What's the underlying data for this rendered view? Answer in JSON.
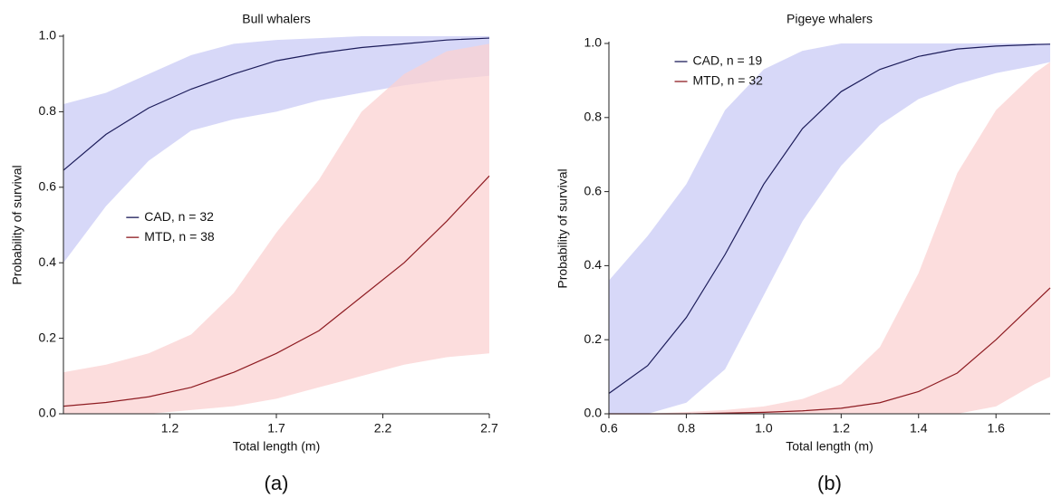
{
  "chart_data": [
    {
      "type": "line",
      "title": "Bull whalers",
      "xlabel": "Total length (m)",
      "ylabel": "Probability of survival",
      "label": "(a)",
      "x": [
        0.7,
        0.9,
        1.1,
        1.3,
        1.5,
        1.7,
        1.9,
        2.1,
        2.3,
        2.5,
        2.7
      ],
      "xlim": [
        0.7,
        2.7
      ],
      "xticks": [
        1.2,
        1.7,
        2.2,
        2.7
      ],
      "ylim": [
        0,
        1
      ],
      "yticks": [
        {
          "value": 0,
          "label": "0.0"
        },
        0.2,
        0.4,
        0.6,
        0.8,
        {
          "value": 1,
          "label": "1.0"
        }
      ],
      "legend": "center left",
      "series": [
        {
          "name": "CAD, n = 32",
          "color": "#1c1c5a",
          "band_color": "#c9cbf5",
          "values": [
            0.645,
            0.74,
            0.81,
            0.86,
            0.9,
            0.935,
            0.955,
            0.97,
            0.98,
            0.99,
            0.995
          ],
          "lower": [
            0.4,
            0.55,
            0.67,
            0.75,
            0.78,
            0.8,
            0.83,
            0.85,
            0.87,
            0.885,
            0.895
          ],
          "upper": [
            0.82,
            0.85,
            0.9,
            0.95,
            0.98,
            0.99,
            0.995,
            1,
            1,
            1,
            1
          ]
        },
        {
          "name": "MTD, n = 38",
          "color": "#8e1c22",
          "band_color": "#fbd2d2",
          "values": [
            0.02,
            0.03,
            0.045,
            0.07,
            0.11,
            0.16,
            0.22,
            0.31,
            0.4,
            0.51,
            0.63
          ],
          "lower": [
            0,
            0,
            0,
            0.01,
            0.02,
            0.04,
            0.07,
            0.1,
            0.13,
            0.15,
            0.16
          ],
          "upper": [
            0.11,
            0.13,
            0.16,
            0.21,
            0.32,
            0.48,
            0.62,
            0.8,
            0.9,
            0.96,
            0.98
          ]
        }
      ]
    },
    {
      "type": "line",
      "title": "Pigeye whalers",
      "xlabel": "Total length (m)",
      "ylabel": "Probability of survival",
      "label": "(b)",
      "x": [
        0.6,
        0.7,
        0.8,
        0.9,
        1.0,
        1.1,
        1.2,
        1.3,
        1.4,
        1.5,
        1.6,
        1.7,
        1.74
      ],
      "xlim": [
        0.6,
        1.74
      ],
      "xticks": [
        0.6,
        0.8,
        {
          "value": 1,
          "label": "1.0"
        },
        1.2,
        1.4,
        1.6
      ],
      "ylim": [
        0,
        1
      ],
      "yticks": [
        {
          "value": 0,
          "label": "0.0"
        },
        0.2,
        0.4,
        0.6,
        0.8,
        {
          "value": 1,
          "label": "1.0"
        }
      ],
      "legend": "upper left",
      "series": [
        {
          "name": "CAD, n = 19",
          "color": "#1c1c5a",
          "band_color": "#c9cbf5",
          "values": [
            0.055,
            0.13,
            0.26,
            0.43,
            0.62,
            0.77,
            0.87,
            0.93,
            0.965,
            0.985,
            0.993,
            0.997,
            0.998
          ],
          "lower": [
            0,
            0,
            0.03,
            0.12,
            0.32,
            0.52,
            0.67,
            0.78,
            0.85,
            0.89,
            0.92,
            0.94,
            0.95
          ],
          "upper": [
            0.36,
            0.48,
            0.62,
            0.82,
            0.93,
            0.98,
            1,
            1,
            1,
            1,
            1,
            1,
            1
          ]
        },
        {
          "name": "MTD, n = 32",
          "color": "#8e1c22",
          "band_color": "#fbd2d2",
          "values": [
            0,
            0,
            0,
            0.002,
            0.004,
            0.008,
            0.015,
            0.03,
            0.06,
            0.11,
            0.2,
            0.3,
            0.34
          ],
          "lower": [
            0,
            0,
            0,
            0,
            0,
            0,
            0,
            0,
            0,
            0,
            0.02,
            0.08,
            0.1
          ],
          "upper": [
            0,
            0,
            0.005,
            0.01,
            0.02,
            0.04,
            0.08,
            0.18,
            0.38,
            0.65,
            0.82,
            0.92,
            0.95
          ]
        }
      ]
    }
  ]
}
